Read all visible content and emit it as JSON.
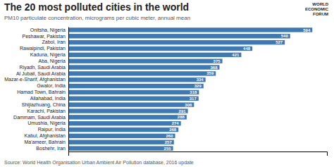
{
  "chart_data": {
    "type": "bar",
    "orientation": "horizontal",
    "title": "The 20 most polluted cities in the world",
    "subtitle": "PM10 particulate concentration, micrograms per cubic meter, annual mean",
    "source": "Source: World Health Organisation Urban Ambient Air Pollution database, 2016 update",
    "annotations": [
      "WORLD",
      "ECONOMIC",
      "FORUM"
    ],
    "categories": [
      "Onitsha, Nigeria",
      "Peshawar, Pakistan",
      "Zabol, Iran",
      "Rawalpindi, Pakistan",
      "Kaduna, Nigeria",
      "Aba, Nigeria",
      "Riyadh, Saudi Arabia",
      "Al Jubail, Saudi Arabia",
      "Mazar-e-Sharif, Afghanistan",
      "Gwalor, India",
      "Hamad Town, Bahrain",
      "Allahabad, India",
      "Shijiazhuang, China",
      "Karachi, Pakistan",
      "Dammam, Saudi Arabia",
      "Umushia, Nigeria",
      "Raipur, India",
      "Kabul, Afghanistan",
      "Ma'ameer, Bahrain",
      "Boshehr, Iran"
    ],
    "values": [
      594,
      540,
      527,
      448,
      421,
      375,
      368,
      359,
      334,
      329,
      318,
      317,
      306,
      291,
      288,
      274,
      268,
      260,
      257,
      255
    ],
    "color": "#3d7ab5",
    "xlim": [
      0,
      629.64
    ],
    "data_labels": true,
    "tick_labels": "y",
    "grid": false
  }
}
